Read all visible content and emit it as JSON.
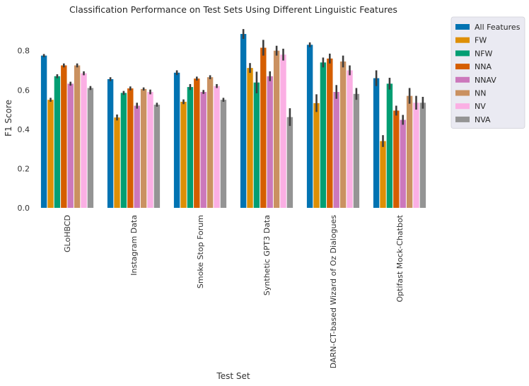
{
  "chart_data": {
    "type": "bar",
    "title": "Classification Performance on Test Sets Using Different Linguistic Features",
    "xlabel": "Test Set",
    "ylabel": "F1 Score",
    "ylim": [
      0,
      0.95
    ],
    "yticks": [
      "0.0",
      "0.2",
      "0.4",
      "0.6",
      "0.8"
    ],
    "ytick_values": [
      0,
      0.2,
      0.4,
      0.6,
      0.8
    ],
    "grid": false,
    "legend_position": "outside-top-right",
    "categories": [
      "GLoHBCD",
      "Instagram Data",
      "Smoke Stop Forum",
      "Synthetic GPT3 Data",
      "DARN-CT-based Wizard of Oz Dialogues",
      "Optifast Mock-Chatbot"
    ],
    "series": [
      {
        "name": "All Features",
        "color": "#0173b2",
        "values": [
          0.775,
          0.655,
          0.688,
          0.885,
          0.83,
          0.66
        ],
        "errors": [
          0.008,
          0.01,
          0.012,
          0.025,
          0.012,
          0.04
        ]
      },
      {
        "name": "FW",
        "color": "#de8f05",
        "values": [
          0.55,
          0.46,
          0.54,
          0.712,
          0.533,
          0.34
        ],
        "errors": [
          0.01,
          0.015,
          0.012,
          0.025,
          0.045,
          0.03
        ]
      },
      {
        "name": "NFW",
        "color": "#029e73",
        "values": [
          0.67,
          0.585,
          0.615,
          0.638,
          0.74,
          0.632
        ],
        "errors": [
          0.01,
          0.01,
          0.015,
          0.055,
          0.025,
          0.03
        ]
      },
      {
        "name": "NNA",
        "color": "#d55e00",
        "values": [
          0.725,
          0.608,
          0.658,
          0.815,
          0.76,
          0.495
        ],
        "errors": [
          0.01,
          0.01,
          0.01,
          0.04,
          0.025,
          0.025
        ]
      },
      {
        "name": "NNAV",
        "color": "#cc78bc",
        "values": [
          0.632,
          0.52,
          0.59,
          0.67,
          0.59,
          0.448
        ],
        "errors": [
          0.01,
          0.015,
          0.01,
          0.025,
          0.035,
          0.025
        ]
      },
      {
        "name": "NN",
        "color": "#ca9161",
        "values": [
          0.725,
          0.605,
          0.665,
          0.8,
          0.745,
          0.57
        ],
        "errors": [
          0.01,
          0.008,
          0.01,
          0.025,
          0.03,
          0.04
        ]
      },
      {
        "name": "NV",
        "color": "#fbafe4",
        "values": [
          0.685,
          0.59,
          0.62,
          0.78,
          0.7,
          0.535
        ],
        "errors": [
          0.01,
          0.012,
          0.01,
          0.03,
          0.025,
          0.035
        ]
      },
      {
        "name": "NVA",
        "color": "#949494",
        "values": [
          0.61,
          0.525,
          0.55,
          0.462,
          0.58,
          0.535
        ],
        "errors": [
          0.01,
          0.01,
          0.01,
          0.045,
          0.03,
          0.03
        ]
      }
    ]
  }
}
